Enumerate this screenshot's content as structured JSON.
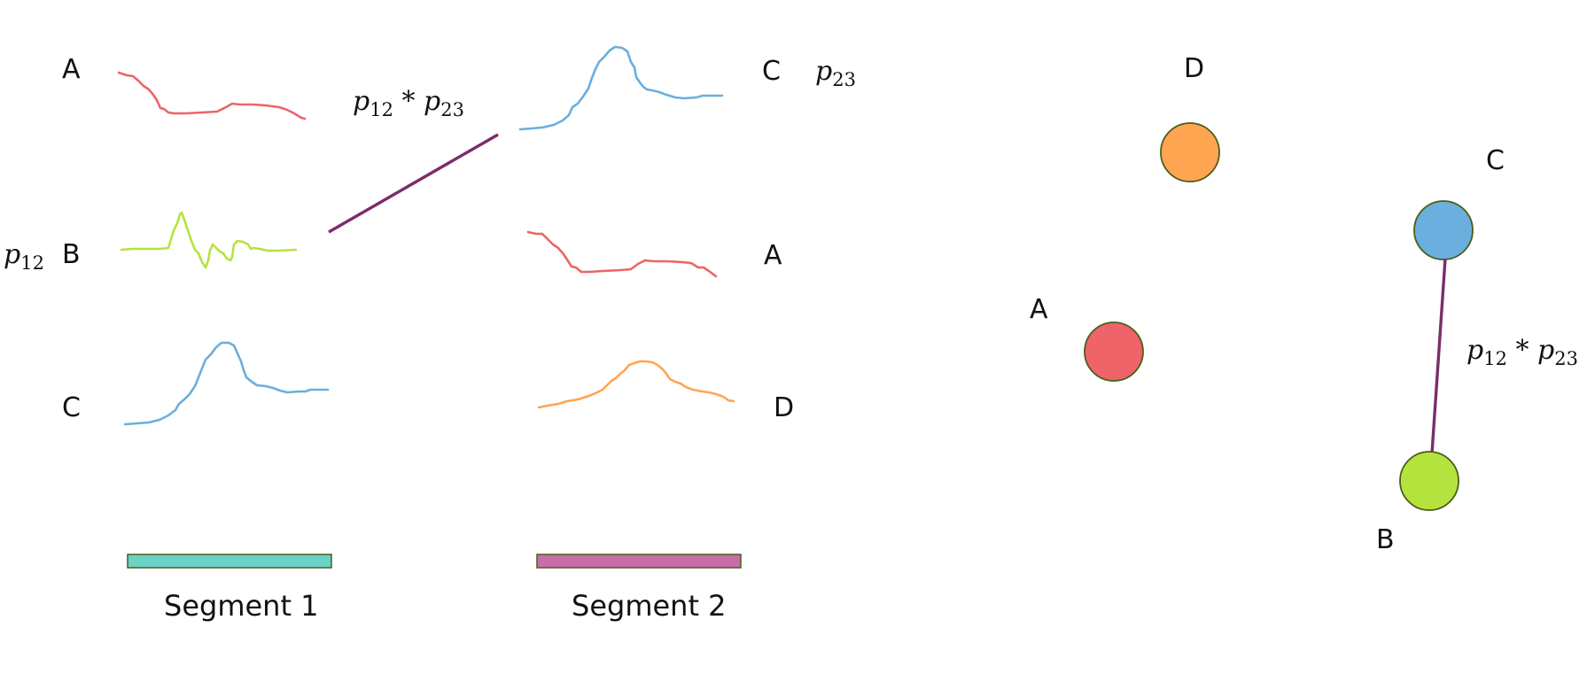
{
  "colors": {
    "A": "#ee6468",
    "B": "#b5e33e",
    "C": "#6aafdd",
    "D": "#ffa552",
    "link": "#7b2d6b",
    "segment1": "#6cd1c6",
    "segment2": "#c76eaa",
    "node_stroke": "#4a5e1a",
    "segment_stroke": "#4a5e1a"
  },
  "left_panel": {
    "segment1": {
      "label": "Segment 1",
      "rows": [
        {
          "name": "A",
          "series": "A"
        },
        {
          "name": "B",
          "series": "B"
        },
        {
          "name": "C",
          "series": "C"
        }
      ],
      "prob_b": {
        "base": "p",
        "sub": "12"
      }
    },
    "segment2": {
      "label": "Segment 2",
      "rows": [
        {
          "name": "C",
          "series": "C"
        },
        {
          "name": "A",
          "series": "A"
        },
        {
          "name": "D",
          "series": "D"
        }
      ],
      "prob_c": {
        "base": "p",
        "sub": "23"
      }
    },
    "link_label": {
      "a": "p",
      "a_sub": "12",
      "op": " * ",
      "b": "p",
      "b_sub": "23"
    }
  },
  "right_panel": {
    "nodes": [
      {
        "name": "D",
        "color_key": "D"
      },
      {
        "name": "C",
        "color_key": "C"
      },
      {
        "name": "A",
        "color_key": "A"
      },
      {
        "name": "B",
        "color_key": "B"
      }
    ],
    "edge": {
      "from": "C",
      "to": "B"
    },
    "edge_label": {
      "a": "p",
      "a_sub": "12",
      "op": " * ",
      "b": "p",
      "b_sub": "23"
    }
  }
}
